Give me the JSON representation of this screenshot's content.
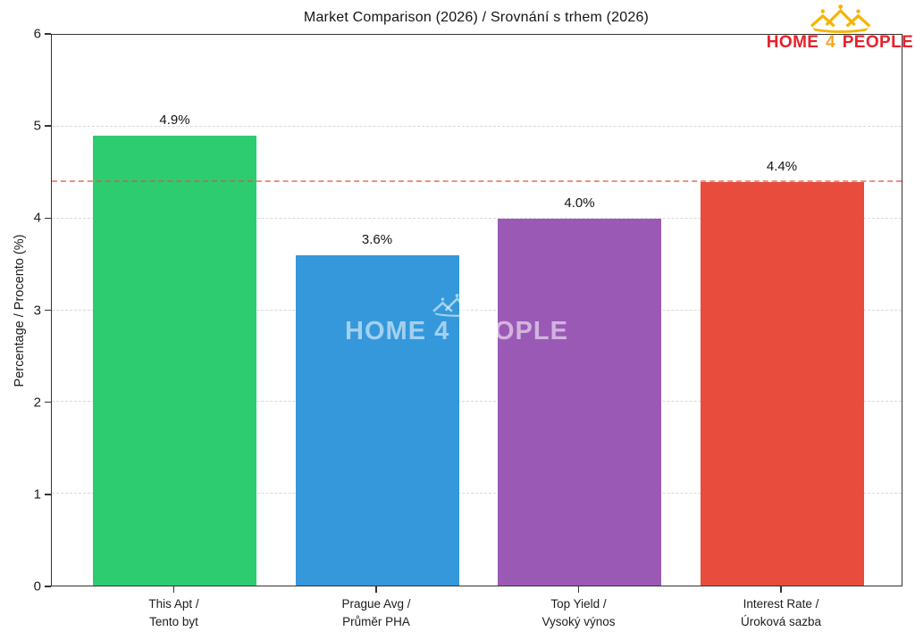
{
  "title": "Market Comparison (2026) / Srovnání s trhem (2026)",
  "logo": {
    "home": "HOME",
    "four": "4",
    "people": "PEOPLE",
    "text_color": "#e8202c",
    "accent_color": "#f5a623",
    "icon_color": "#f5b301"
  },
  "watermark": {
    "text": "HOME 4 PEOPLE"
  },
  "icons": {
    "logo_icon": "crown-of-houses-icon",
    "watermark_icon": "crown-of-houses-icon"
  },
  "chart_data": {
    "type": "bar",
    "title": "Market Comparison (2026) / Srovnání s trhem (2026)",
    "xlabel": "",
    "ylabel": "Percentage / Procento (%)",
    "ylim": [
      0,
      6
    ],
    "yticks": [
      0,
      1,
      2,
      3,
      4,
      5,
      6
    ],
    "grid": true,
    "legend": "none",
    "categories": [
      "This Apt / Tento byt",
      "Prague Avg / Průměr PHA",
      "Top Yield / Vysoký výnos",
      "Interest Rate / Úroková sazba"
    ],
    "category_lines": [
      [
        "This Apt /",
        "Tento byt"
      ],
      [
        "Prague Avg /",
        "Průměr PHA"
      ],
      [
        "Top Yield /",
        "Vysoký výnos"
      ],
      [
        "Interest Rate /",
        "Úroková sazba"
      ]
    ],
    "values": [
      4.9,
      3.6,
      4.0,
      4.4
    ],
    "value_labels": [
      "4.9%",
      "3.6%",
      "4.0%",
      "4.4%"
    ],
    "bar_colors": [
      "#2ecc71",
      "#3498db",
      "#9b59b6",
      "#e74c3c"
    ],
    "reference_line": {
      "value": 4.4,
      "color": "#e74c3c",
      "style": "dashed"
    }
  }
}
